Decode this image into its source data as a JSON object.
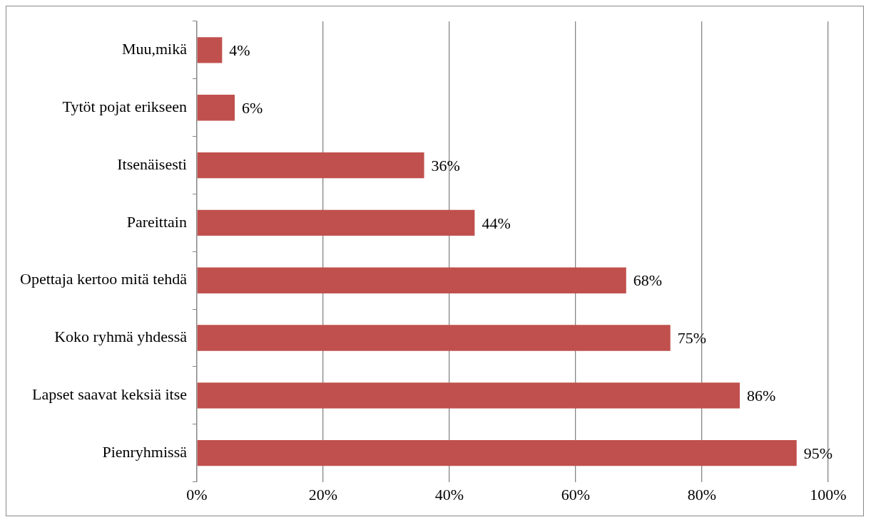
{
  "chart_data": {
    "type": "bar",
    "orientation": "horizontal",
    "categories": [
      "Muu,mikä",
      "Tytöt pojat erikseen",
      "Itsenäisesti",
      "Pareittain",
      "Opettaja kertoo mitä tehdä",
      "Koko ryhmä yhdessä",
      "Lapset saavat keksiä itse",
      "Pienryhmissä"
    ],
    "values": [
      4,
      6,
      36,
      44,
      68,
      75,
      86,
      95
    ],
    "value_labels": [
      "4%",
      "6%",
      "36%",
      "44%",
      "68%",
      "75%",
      "86%",
      "95%"
    ],
    "color": "#c0504d",
    "xlim": [
      0,
      100
    ],
    "xticks": [
      {
        "value": 0,
        "label": "0%"
      },
      {
        "value": 20,
        "label": "20%"
      },
      {
        "value": 40,
        "label": "40%"
      },
      {
        "value": 60,
        "label": "60%"
      },
      {
        "value": 80,
        "label": "80%"
      },
      {
        "value": 100,
        "label": "100%"
      }
    ],
    "grid": "x",
    "legend": false
  }
}
